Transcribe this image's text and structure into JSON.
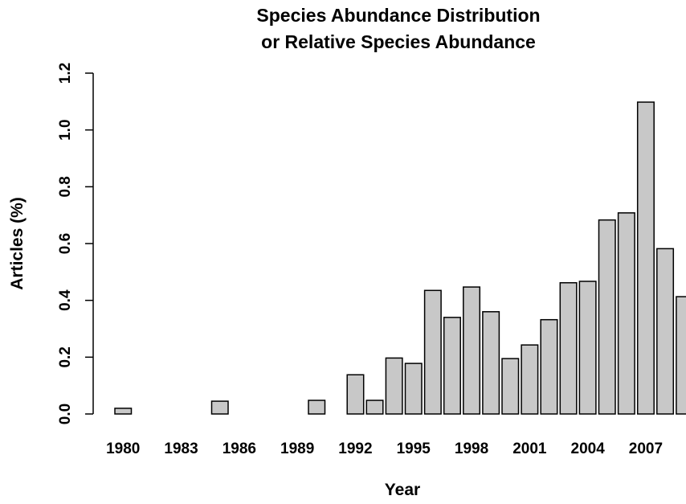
{
  "chart_data": {
    "type": "bar",
    "title": "Species Abundance Distribution",
    "subtitle": "or Relative Species Abundance",
    "xlabel": "Year",
    "ylabel": "Articles (%)",
    "ylim": [
      0,
      1.2
    ],
    "yticks": [
      "0.0",
      "0.2",
      "0.4",
      "0.6",
      "0.8",
      "1.0",
      "1.2"
    ],
    "xtick_labels": [
      "1980",
      "1983",
      "1986",
      "1989",
      "1992",
      "1995",
      "1998",
      "2001",
      "2004",
      "2007"
    ],
    "categories": [
      "1980",
      "1981",
      "1982",
      "1983",
      "1984",
      "1985",
      "1986",
      "1987",
      "1988",
      "1989",
      "1990",
      "1991",
      "1992",
      "1993",
      "1994",
      "1995",
      "1996",
      "1997",
      "1998",
      "1999",
      "2000",
      "2001",
      "2002",
      "2003",
      "2004",
      "2005",
      "2006",
      "2007",
      "2008",
      "2009"
    ],
    "values": [
      0.02,
      0.0,
      0.0,
      0.0,
      0.0,
      0.045,
      0.0,
      0.0,
      0.0,
      0.0,
      0.048,
      0.0,
      0.138,
      0.048,
      0.197,
      0.178,
      0.435,
      0.34,
      0.447,
      0.36,
      0.195,
      0.243,
      0.332,
      0.462,
      0.467,
      0.683,
      0.708,
      1.098,
      0.582,
      0.413
    ],
    "bar_color": "#c8c8c8",
    "grid": false
  }
}
